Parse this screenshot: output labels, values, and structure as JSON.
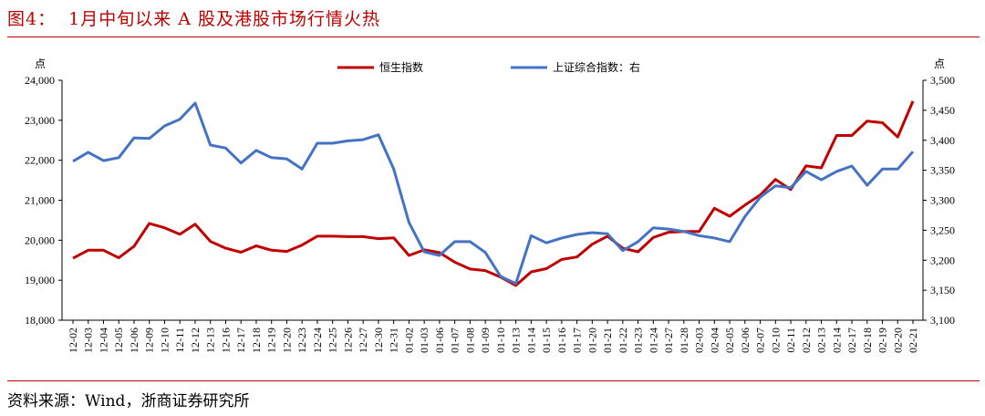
{
  "title": "图4：  1月中旬以来 A 股及港股市场行情火热",
  "source": "资料来源：Wind，浙商证券研究所",
  "chart_data": {
    "type": "line",
    "title": "",
    "ylabel_left": "点",
    "ylabel_right": "点",
    "legend_position": "top",
    "grid": false,
    "ylim_left": [
      18000,
      24000
    ],
    "yticks_left": [
      "18,000",
      "19,000",
      "20,000",
      "21,000",
      "22,000",
      "23,000",
      "24,000"
    ],
    "ylim_right": [
      3100,
      3500
    ],
    "yticks_right": [
      "3,100",
      "3,150",
      "3,200",
      "3,250",
      "3,300",
      "3,350",
      "3,400",
      "3,450",
      "3,500"
    ],
    "categories": [
      "12-02",
      "12-03",
      "12-04",
      "12-05",
      "12-06",
      "12-09",
      "12-10",
      "12-11",
      "12-12",
      "12-13",
      "12-16",
      "12-17",
      "12-18",
      "12-19",
      "12-20",
      "12-23",
      "12-24",
      "12-25",
      "12-26",
      "12-27",
      "12-30",
      "12-31",
      "01-02",
      "01-03",
      "01-06",
      "01-07",
      "01-08",
      "01-09",
      "01-10",
      "01-13",
      "01-14",
      "01-15",
      "01-16",
      "01-17",
      "01-20",
      "01-21",
      "01-22",
      "01-23",
      "01-24",
      "01-27",
      "01-28",
      "02-03",
      "02-04",
      "02-05",
      "02-06",
      "02-07",
      "02-10",
      "02-11",
      "02-12",
      "02-13",
      "02-14",
      "02-17",
      "02-18",
      "02-19",
      "02-20",
      "02-21"
    ],
    "series": [
      {
        "name": "恒生指数",
        "axis": "left",
        "color": "#c00000",
        "values": [
          19550,
          19750,
          19750,
          19560,
          19850,
          20420,
          20310,
          20150,
          20400,
          19970,
          19800,
          19700,
          19860,
          19750,
          19720,
          19880,
          20100,
          20100,
          20090,
          20090,
          20040,
          20060,
          19620,
          19760,
          19690,
          19450,
          19280,
          19240,
          19080,
          18870,
          19210,
          19290,
          19520,
          19580,
          19900,
          20100,
          19800,
          19710,
          20070,
          20200,
          20220,
          20220,
          20800,
          20600,
          20880,
          21130,
          21520,
          21270,
          21860,
          21810,
          22620,
          22620,
          22980,
          22940,
          22580,
          23480
        ]
      },
      {
        "name": "上证综合指数：右",
        "axis": "right",
        "color": "#4472c4",
        "values": [
          3365,
          3380,
          3366,
          3371,
          3404,
          3403,
          3424,
          3435,
          3462,
          3392,
          3387,
          3362,
          3383,
          3371,
          3369,
          3352,
          3395,
          3395,
          3399,
          3401,
          3409,
          3352,
          3263,
          3214,
          3208,
          3231,
          3231,
          3213,
          3173,
          3161,
          3241,
          3229,
          3237,
          3243,
          3246,
          3244,
          3216,
          3231,
          3254,
          3252,
          3248,
          3241,
          3237,
          3231,
          3273,
          3305,
          3324,
          3321,
          3348,
          3334,
          3348,
          3357,
          3325,
          3352,
          3352,
          3381
        ]
      }
    ]
  }
}
